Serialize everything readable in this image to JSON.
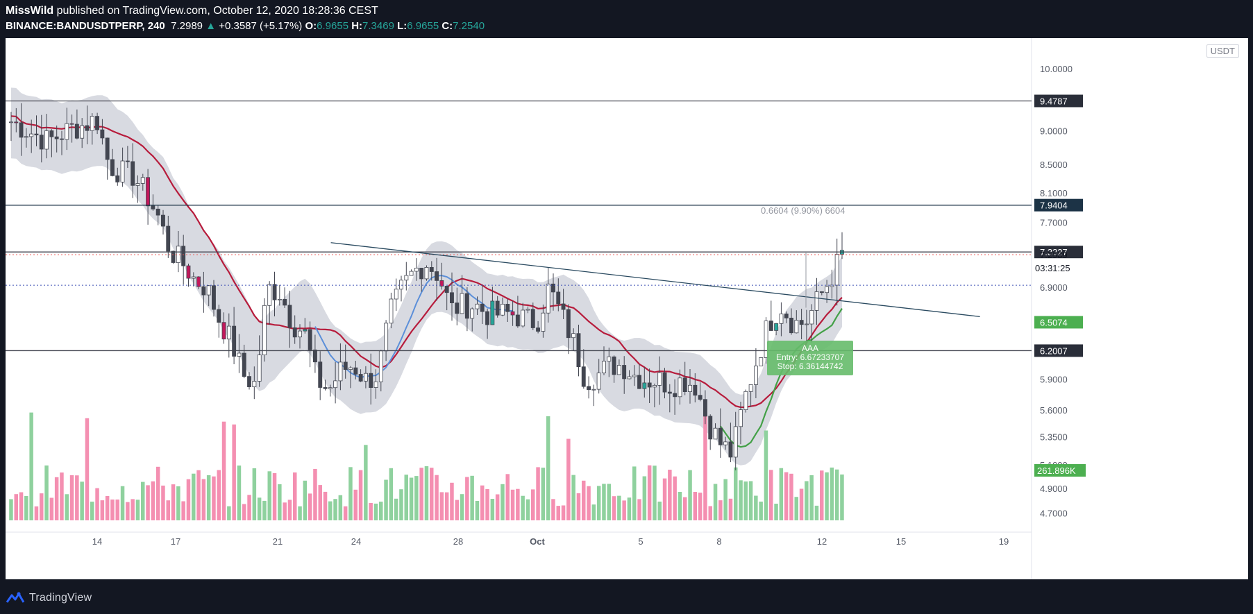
{
  "header": {
    "publisher": "MissWild",
    "published_text": " published on TradingView.com, October 12, 2020 18:28:36 CEST",
    "symbol": "BINANCE:BANDUSDTPERP, 240",
    "last": "7.2989",
    "change": "+0.3587 (+5.17%)",
    "o_label": "O:",
    "o_value": "6.9655",
    "h_label": "H:",
    "h_value": "7.3469",
    "l_label": "L:",
    "l_value": "6.9655",
    "c_label": "C:",
    "c_value": "7.2540"
  },
  "currency_badge": "USDT",
  "footer": {
    "brand": "TradingView"
  },
  "annotations": {
    "measure_label": "0.6604 (9.90%) 6604",
    "trade_box": {
      "title": "AAA",
      "entry": "Entry: 6.67233707",
      "stop": "Stop: 6.36144742"
    }
  },
  "colors": {
    "background": "#131722",
    "up_candle": "#ffffff",
    "down_candle": "#434651",
    "highlight_up_candle": "#26a69a",
    "highlight_down_candle": "#c2185b",
    "ma_red": "#b71c3c",
    "ma_blue": "#5b8fd9",
    "ma_green": "#43a047",
    "envelope": "#d1d4dc",
    "volume_up": "#8fd19e",
    "volume_down": "#f48fb1",
    "trendline": "#2a4a60",
    "price_label_dark": "#2a2e39",
    "price_label_navy": "#1c3346",
    "price_label_green": "#4caf50",
    "trade_box": "#66bb6a"
  },
  "chart_data": {
    "type": "candlestick",
    "title": "BINANCE:BANDUSDTPERP, 240",
    "y_axis_ticks": [
      "10.0000",
      "9.0000",
      "8.5000",
      "8.1000",
      "7.7000",
      "6.9000",
      "5.9000",
      "5.6000",
      "5.3500",
      "5.1000",
      "4.9000",
      "4.7000"
    ],
    "x_axis_ticks": [
      "14",
      "17",
      "21",
      "24",
      "28",
      "Oct",
      "5",
      "8",
      "12",
      "15",
      "19"
    ],
    "scale": "log",
    "grid": false,
    "horizontal_levels": [
      {
        "price": 9.4787,
        "label": "9.4787",
        "style": "dark"
      },
      {
        "price": 7.9404,
        "label": "7.9404",
        "style": "navy"
      },
      {
        "price": 7.3327,
        "label": "7.3327",
        "style": "dark"
      },
      {
        "price": 6.2007,
        "label": "6.2007",
        "style": "dark"
      }
    ],
    "price_labels": [
      {
        "price": 7.2989,
        "label": "7.2989",
        "style": "plain"
      },
      {
        "price": 6.5074,
        "label": "6.5074",
        "style": "green"
      }
    ],
    "countdown": "03:31:25",
    "volume_label": "261.896K",
    "trendline": {
      "start": {
        "x": "Sep 23",
        "price": 7.45
      },
      "end": {
        "x": "Oct 18",
        "price": 6.57
      }
    },
    "closes_sampled": [
      9.15,
      9.05,
      8.95,
      8.85,
      8.95,
      9.05,
      9.1,
      9.2,
      8.5,
      8.4,
      8.35,
      8.1,
      7.8,
      7.35,
      7.2,
      7.0,
      6.9,
      6.55,
      6.3,
      5.95,
      5.85,
      6.9,
      6.85,
      6.5,
      6.4,
      5.9,
      5.8,
      6.0,
      6.05,
      5.9,
      5.95,
      6.6,
      6.9,
      7.1,
      7.2,
      7.05,
      6.65,
      6.7,
      6.7,
      6.6,
      6.6,
      6.6,
      6.55,
      6.5,
      6.9,
      6.6,
      6.3,
      5.9,
      5.95,
      6.05,
      6.05,
      5.95,
      5.9,
      5.9,
      5.85,
      5.9,
      5.85,
      5.5,
      5.3,
      5.2,
      5.7,
      6.1,
      6.5,
      6.7,
      6.5,
      6.5,
      6.75,
      7.0,
      7.3
    ],
    "volume_label_note": "volume bars in lower pane"
  }
}
